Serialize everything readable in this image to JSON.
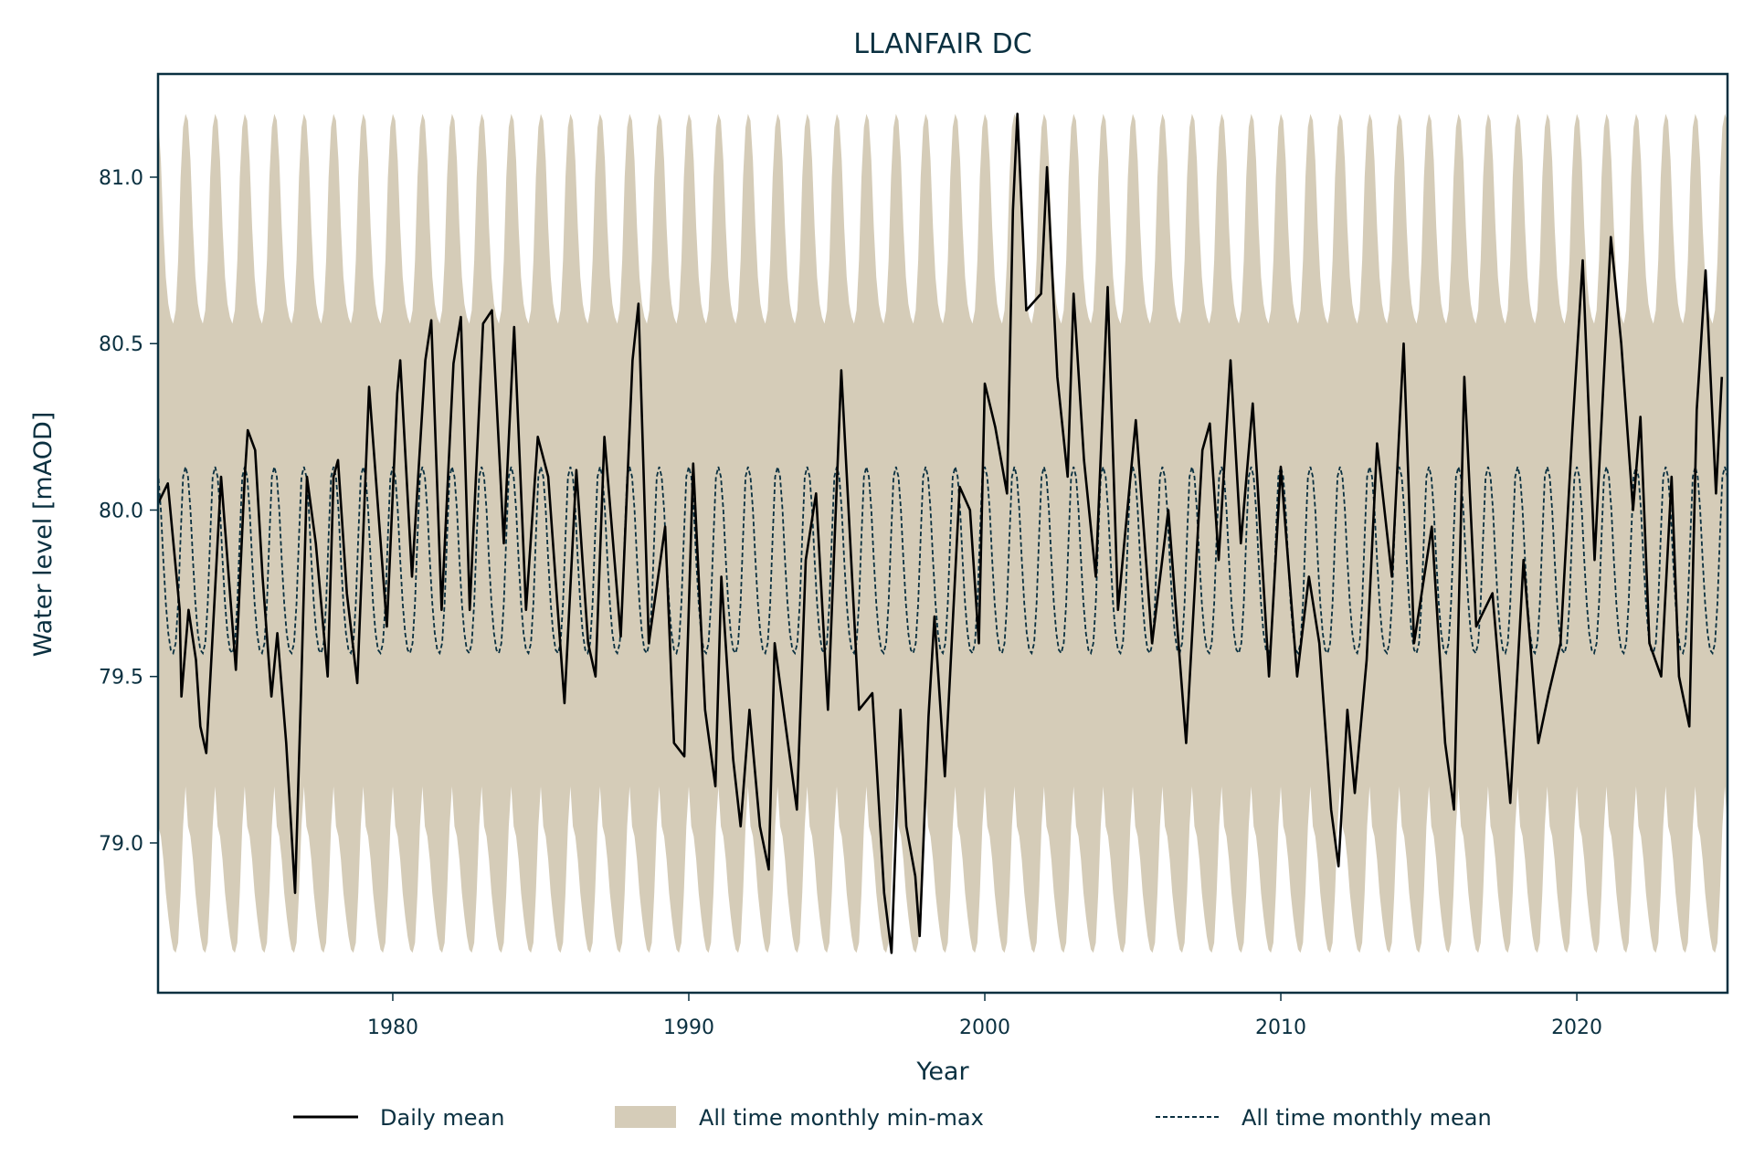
{
  "chart_data": {
    "type": "line",
    "title": "LLANFAIR DC",
    "xlabel": "Year",
    "ylabel": "Water level [mAOD]",
    "xlim": [
      1972.07,
      2025.09
    ],
    "ylim": [
      78.55,
      81.31
    ],
    "xticks": [
      1980,
      1990,
      2000,
      2010,
      2020
    ],
    "xtick_labels": [
      "1980",
      "1990",
      "2000",
      "2010",
      "2020"
    ],
    "yticks": [
      79.0,
      79.5,
      80.0,
      80.5,
      81.0
    ],
    "ytick_labels": [
      "79.0",
      "79.5",
      "80.0",
      "80.5",
      "81.0"
    ],
    "grid": false,
    "legend_placement": "bottom-center",
    "legend": [
      "Daily mean",
      "All time monthly min-max",
      "All time monthly mean"
    ],
    "colors": {
      "daily": "#000000",
      "band": "#d5ccb8",
      "mean": "#0a3040",
      "axis": "#0a3040"
    },
    "monthly": {
      "months": [
        1,
        2,
        3,
        4,
        5,
        6,
        7,
        8,
        9,
        10,
        11,
        12
      ],
      "max": [
        81.19,
        81.17,
        81.05,
        80.85,
        80.7,
        80.62,
        80.58,
        80.56,
        80.6,
        80.75,
        81.0,
        81.15
      ],
      "min": [
        79.17,
        79.05,
        79.02,
        78.95,
        78.85,
        78.78,
        78.72,
        78.68,
        78.67,
        78.7,
        78.85,
        79.05
      ],
      "mean": [
        80.13,
        80.1,
        80.0,
        79.85,
        79.72,
        79.63,
        79.58,
        79.57,
        79.6,
        79.72,
        79.92,
        80.1
      ]
    },
    "series": [
      {
        "name": "Daily mean",
        "x": [
          1972.07,
          1972.4,
          1972.8,
          1972.86,
          1973.1,
          1973.35,
          1973.5,
          1973.7,
          1973.9,
          1974.2,
          1974.7,
          1975.0,
          1975.1,
          1975.35,
          1975.6,
          1975.9,
          1976.1,
          1976.4,
          1976.7,
          1976.9,
          1977.1,
          1977.4,
          1977.8,
          1978.0,
          1978.15,
          1978.45,
          1978.8,
          1979.2,
          1979.8,
          1980.15,
          1980.25,
          1980.65,
          1981.1,
          1981.3,
          1981.65,
          1982.05,
          1982.3,
          1982.6,
          1983.05,
          1983.35,
          1983.75,
          1984.1,
          1984.5,
          1984.9,
          1985.25,
          1985.8,
          1986.2,
          1986.6,
          1986.85,
          1987.15,
          1987.7,
          1988.1,
          1988.3,
          1988.65,
          1989.2,
          1989.5,
          1989.85,
          1990.15,
          1990.55,
          1990.9,
          1991.1,
          1991.5,
          1991.75,
          1992.05,
          1992.4,
          1992.7,
          1992.9,
          1993.35,
          1993.65,
          1993.95,
          1994.3,
          1994.7,
          1995.15,
          1995.75,
          1996.2,
          1996.6,
          1996.85,
          1997.15,
          1997.35,
          1997.65,
          1997.8,
          1998.1,
          1998.3,
          1998.65,
          1999.15,
          1999.5,
          1999.8,
          2000.0,
          2000.35,
          2000.75,
          2000.95,
          2001.1,
          2001.4,
          2001.9,
          2002.1,
          2002.45,
          2002.8,
          2003.0,
          2003.35,
          2003.75,
          2004.15,
          2004.5,
          2005.1,
          2005.65,
          2006.2,
          2006.8,
          2007.35,
          2007.6,
          2007.9,
          2008.3,
          2008.65,
          2009.05,
          2009.6,
          2010.0,
          2010.55,
          2010.95,
          2011.3,
          2011.7,
          2011.95,
          2012.25,
          2012.5,
          2012.9,
          2013.25,
          2013.75,
          2014.15,
          2014.5,
          2015.1,
          2015.55,
          2015.85,
          2016.2,
          2016.6,
          2017.15,
          2017.75,
          2018.2,
          2018.7,
          2019.05,
          2019.45,
          2019.85,
          2020.2,
          2020.6,
          2021.15,
          2021.5,
          2021.9,
          2022.15,
          2022.45,
          2022.85,
          2023.2,
          2023.45,
          2023.8,
          2024.05,
          2024.35,
          2024.7,
          2024.9
        ],
        "y": [
          80.02,
          80.08,
          79.7,
          79.44,
          79.7,
          79.55,
          79.35,
          79.27,
          79.6,
          80.1,
          79.52,
          80.1,
          80.24,
          80.18,
          79.8,
          79.44,
          79.63,
          79.3,
          78.85,
          79.45,
          80.1,
          79.9,
          79.5,
          80.1,
          80.15,
          79.75,
          79.48,
          80.37,
          79.65,
          80.35,
          80.45,
          79.8,
          80.45,
          80.57,
          79.7,
          80.44,
          80.58,
          79.7,
          80.56,
          80.6,
          79.9,
          80.55,
          79.7,
          80.22,
          80.1,
          79.42,
          80.12,
          79.6,
          79.5,
          80.22,
          79.62,
          80.45,
          80.62,
          79.6,
          79.95,
          79.3,
          79.26,
          80.14,
          79.4,
          79.17,
          79.8,
          79.25,
          79.05,
          79.4,
          79.05,
          78.92,
          79.6,
          79.3,
          79.1,
          79.85,
          80.05,
          79.4,
          80.42,
          79.4,
          79.45,
          78.85,
          78.67,
          79.4,
          79.05,
          78.9,
          78.72,
          79.38,
          79.68,
          79.2,
          80.07,
          80.0,
          79.6,
          80.38,
          80.25,
          80.05,
          80.9,
          81.19,
          80.6,
          80.65,
          81.03,
          80.4,
          80.1,
          80.65,
          80.15,
          79.8,
          80.67,
          79.7,
          80.27,
          79.6,
          80.0,
          79.3,
          80.18,
          80.26,
          79.85,
          80.45,
          79.9,
          80.32,
          79.5,
          80.13,
          79.5,
          79.8,
          79.6,
          79.1,
          78.93,
          79.4,
          79.15,
          79.55,
          80.2,
          79.8,
          80.5,
          79.6,
          79.95,
          79.3,
          79.1,
          80.4,
          79.65,
          79.75,
          79.12,
          79.85,
          79.3,
          79.45,
          79.6,
          80.24,
          80.75,
          79.85,
          80.82,
          80.5,
          80.0,
          80.28,
          79.6,
          79.5,
          80.1,
          79.5,
          79.35,
          80.3,
          80.72,
          80.05,
          80.4
        ]
      }
    ]
  }
}
